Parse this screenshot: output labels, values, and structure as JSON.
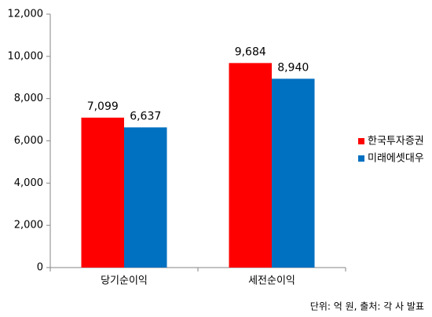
{
  "chart_data": {
    "type": "bar",
    "categories": [
      "당기순이익",
      "세전순이익"
    ],
    "series": [
      {
        "name": "한국투자증권",
        "color": "#ff0000",
        "values": [
          7099,
          9684
        ],
        "value_labels": [
          "7,099",
          "9,684"
        ]
      },
      {
        "name": "미래에셋대우",
        "color": "#0070c0",
        "values": [
          6637,
          8940
        ],
        "value_labels": [
          "6,637",
          "8,940"
        ]
      }
    ],
    "ylim": [
      0,
      12000
    ],
    "yticks": [
      0,
      {
        "value": 2000,
        "label": "2,000"
      },
      {
        "value": 4000,
        "label": "4,000"
      },
      {
        "value": 6000,
        "label": "6,000"
      },
      {
        "value": 8000,
        "label": "8,000"
      },
      {
        "value": 10000,
        "label": "10,000"
      },
      {
        "value": 12000,
        "label": "12,000"
      }
    ],
    "grid": false,
    "legend": "right",
    "note": "단위: 억 원, 출처: 각 사 발표"
  }
}
